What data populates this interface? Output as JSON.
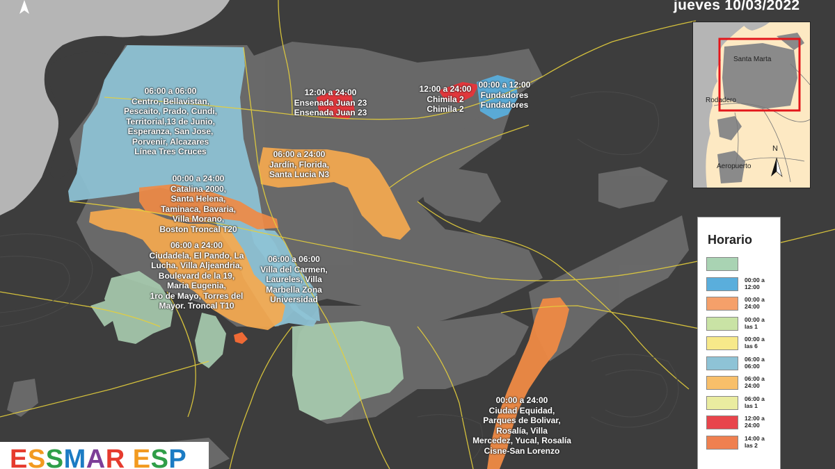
{
  "date_title": "jueves 10/03/2022",
  "zones": [
    {
      "name": "centro",
      "label": "06:00 a 06:00\nCentro, Bellavistan,\nPescaito, Prado, Cundi,\nTerritorial,13 de Junio,\nEsperanza, San Jose,\nPorvenir, Alcazares\nLínea Tres Cruces",
      "color": "#8ec3d6"
    },
    {
      "name": "ensenada",
      "label": "12:00 a 24:00\nEnsenada Juan 23\nEnsenada Juan 23",
      "color": "#e8353a"
    },
    {
      "name": "chimila",
      "label": "12:00 a 24:00\nChimila 2\nChimila 2",
      "color": "#e8353a"
    },
    {
      "name": "fundadores",
      "label": "00:00 a 12:00\nFundadores\nFundadores",
      "color": "#5aaedc"
    },
    {
      "name": "jardin",
      "label": "06:00 a 24:00\nJardín, Florida,\nSanta Lucia N3",
      "color": "#f5a94f"
    },
    {
      "name": "catalina",
      "label": "00:00 a 24:00\nCatalina 2000,\nSanta Helena,\nTaminaca, Bavaria,\nVilla Morano,\nBoston Troncal T20",
      "color": "#ef8a45"
    },
    {
      "name": "ciudadela",
      "label": "06:00 a 24:00\nCiudadela, El Pando, La\nLucha, Villa Aljeandria,\nBoulevard de la 19,\nMaria Eugenia,\n1ro de Mayo, Torres del\nMayor. Troncal T10",
      "color": "#f5a94f"
    },
    {
      "name": "villa-carmen",
      "label": "06:00 a 06:00\nVilla del Carmen,\nLaureles, Villa\nMarbella Zona\nUniversidad",
      "color": "#8ec3d6"
    },
    {
      "name": "equidad",
      "label": "00:00 a 24:00\nCiudad Equidad,\nParques de Bolivar,\nRosalía, Villa\nMercedez, Yucal, Rosalía\nCisne-San Lorenzo",
      "color": "#ef8a45"
    }
  ],
  "inset": {
    "labels": [
      "Santa Marta",
      "Rodadero",
      "Aeropuerto"
    ],
    "north": "N"
  },
  "legend": {
    "title": "Horario",
    "items": [
      {
        "label": "",
        "color": "#a9d3b3"
      },
      {
        "label": "00:00 a\n12:00",
        "color": "#5aaedc"
      },
      {
        "label": "00:00 a\n24:00",
        "color": "#f5a06a"
      },
      {
        "label": "00:00 a\nlas 1",
        "color": "#c9e3a5"
      },
      {
        "label": "00:00 a\nlas 6",
        "color": "#f7e98a"
      },
      {
        "label": "06:00 a\n06:00",
        "color": "#8ec3d6"
      },
      {
        "label": "06:00 a\n24:00",
        "color": "#f8bf6a"
      },
      {
        "label": "06:00 a\nlas 1",
        "color": "#eaeca0"
      },
      {
        "label": "12:00 a\n24:00",
        "color": "#e8454c"
      },
      {
        "label": "14:00 a\nlas 2",
        "color": "#ef8050"
      }
    ]
  },
  "logo": {
    "text": "ESSMAR ESP",
    "letter_colors": [
      "#e63b2e",
      "#f29a1f",
      "#2f9e48",
      "#1c7cc4",
      "#7d3e98",
      "#e63b2e",
      "#ffffff",
      "#f29a1f",
      "#2f9e48",
      "#1c7cc4"
    ]
  },
  "colors": {
    "sea": "#b8b8b8",
    "land": "#3d3d3d",
    "urban": "#6e6e6e",
    "roads": "#e5cf3c",
    "green_zones": "#a9cdb0"
  }
}
